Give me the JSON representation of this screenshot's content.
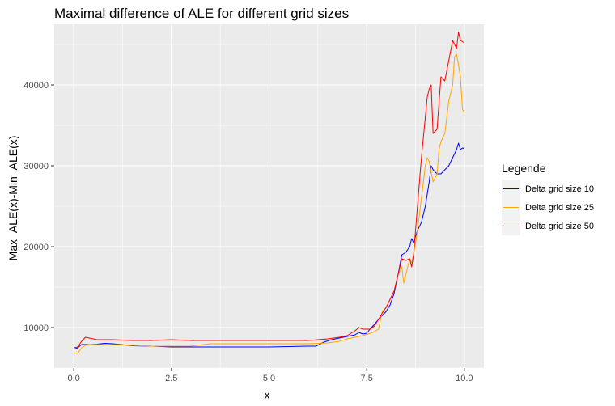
{
  "chart_data": {
    "type": "line",
    "title": "Maximal difference of ALE for different grid sizes",
    "xlabel": "x",
    "ylabel": "Max_ALE(x)-Min_ALE(x)",
    "xlim": [
      -0.5,
      10.5
    ],
    "ylim": [
      5000,
      47500
    ],
    "xticks": [
      0,
      2.5,
      5,
      7.5,
      10
    ],
    "xtick_labels": [
      "0.0",
      "2.5",
      "5.0",
      "7.5",
      "10.0"
    ],
    "yticks": [
      10000,
      20000,
      30000,
      40000
    ],
    "ytick_labels": [
      "10000",
      "20000",
      "30000",
      "40000"
    ],
    "grid": true,
    "background": "#ebebeb",
    "legend": {
      "title": "Legende",
      "position": "right"
    },
    "series": [
      {
        "name": "Delta grid size 10",
        "color": "#0000ff",
        "points": [
          [
            0,
            7300
          ],
          [
            0.1,
            7500
          ],
          [
            0.2,
            7900
          ],
          [
            0.4,
            7900
          ],
          [
            0.6,
            7950
          ],
          [
            0.8,
            8050
          ],
          [
            1,
            8000
          ],
          [
            1.5,
            7750
          ],
          [
            2,
            7700
          ],
          [
            2.5,
            7600
          ],
          [
            3,
            7600
          ],
          [
            3.5,
            7600
          ],
          [
            4,
            7600
          ],
          [
            4.5,
            7600
          ],
          [
            5,
            7600
          ],
          [
            5.5,
            7650
          ],
          [
            6,
            7700
          ],
          [
            6.2,
            7700
          ],
          [
            6.4,
            8200
          ],
          [
            6.6,
            8500
          ],
          [
            6.8,
            8700
          ],
          [
            7,
            8900
          ],
          [
            7.2,
            9100
          ],
          [
            7.3,
            9400
          ],
          [
            7.4,
            9200
          ],
          [
            7.5,
            9300
          ],
          [
            7.6,
            9900
          ],
          [
            7.7,
            10400
          ],
          [
            7.8,
            11000
          ],
          [
            7.9,
            11500
          ],
          [
            8,
            12000
          ],
          [
            8.1,
            12800
          ],
          [
            8.2,
            14200
          ],
          [
            8.3,
            16500
          ],
          [
            8.4,
            19000
          ],
          [
            8.5,
            19300
          ],
          [
            8.6,
            20000
          ],
          [
            8.65,
            21000
          ],
          [
            8.7,
            20500
          ],
          [
            8.8,
            22000
          ],
          [
            8.9,
            23000
          ],
          [
            9,
            25000
          ],
          [
            9.1,
            28000
          ],
          [
            9.15,
            30000
          ],
          [
            9.2,
            29500
          ],
          [
            9.3,
            29000
          ],
          [
            9.4,
            29000
          ],
          [
            9.5,
            29500
          ],
          [
            9.6,
            30000
          ],
          [
            9.7,
            31000
          ],
          [
            9.8,
            32000
          ],
          [
            9.85,
            32800
          ],
          [
            9.9,
            32000
          ],
          [
            9.95,
            32200
          ],
          [
            10,
            32100
          ]
        ]
      },
      {
        "name": "Delta grid size 25",
        "color": "#ffa500",
        "points": [
          [
            0,
            6900
          ],
          [
            0.1,
            6800
          ],
          [
            0.2,
            7500
          ],
          [
            0.3,
            7800
          ],
          [
            0.4,
            7900
          ],
          [
            0.6,
            7900
          ],
          [
            0.8,
            7900
          ],
          [
            1,
            7900
          ],
          [
            1.5,
            7800
          ],
          [
            2,
            7700
          ],
          [
            2.5,
            7700
          ],
          [
            3,
            7700
          ],
          [
            3.5,
            8000
          ],
          [
            4,
            8000
          ],
          [
            4.5,
            8000
          ],
          [
            5,
            8000
          ],
          [
            5.5,
            8000
          ],
          [
            6,
            8000
          ],
          [
            6.5,
            8100
          ],
          [
            6.8,
            8300
          ],
          [
            7,
            8600
          ],
          [
            7.2,
            8800
          ],
          [
            7.4,
            9000
          ],
          [
            7.6,
            9300
          ],
          [
            7.7,
            9500
          ],
          [
            7.8,
            9800
          ],
          [
            7.9,
            12000
          ],
          [
            8,
            12500
          ],
          [
            8.1,
            13500
          ],
          [
            8.2,
            14500
          ],
          [
            8.3,
            16500
          ],
          [
            8.4,
            17500
          ],
          [
            8.45,
            15500
          ],
          [
            8.5,
            16500
          ],
          [
            8.6,
            18500
          ],
          [
            8.65,
            18000
          ],
          [
            8.7,
            19000
          ],
          [
            8.8,
            22000
          ],
          [
            8.9,
            26000
          ],
          [
            9,
            30000
          ],
          [
            9.05,
            31000
          ],
          [
            9.1,
            30500
          ],
          [
            9.2,
            28000
          ],
          [
            9.3,
            29000
          ],
          [
            9.35,
            32000
          ],
          [
            9.4,
            33000
          ],
          [
            9.5,
            34000
          ],
          [
            9.6,
            38000
          ],
          [
            9.7,
            40000
          ],
          [
            9.75,
            43500
          ],
          [
            9.8,
            43800
          ],
          [
            9.85,
            42500
          ],
          [
            9.9,
            41000
          ],
          [
            9.95,
            37000
          ],
          [
            10,
            36500
          ]
        ]
      },
      {
        "name": "Delta grid size 50",
        "color": "#ff0000",
        "points": [
          [
            0,
            7500
          ],
          [
            0.1,
            7600
          ],
          [
            0.2,
            8300
          ],
          [
            0.3,
            8800
          ],
          [
            0.4,
            8700
          ],
          [
            0.5,
            8600
          ],
          [
            0.6,
            8500
          ],
          [
            1,
            8500
          ],
          [
            1.5,
            8400
          ],
          [
            2,
            8400
          ],
          [
            2.5,
            8500
          ],
          [
            3,
            8400
          ],
          [
            3.5,
            8400
          ],
          [
            4,
            8400
          ],
          [
            4.5,
            8400
          ],
          [
            5,
            8400
          ],
          [
            5.5,
            8400
          ],
          [
            6,
            8400
          ],
          [
            6.5,
            8600
          ],
          [
            6.8,
            8800
          ],
          [
            7,
            9000
          ],
          [
            7.2,
            9600
          ],
          [
            7.3,
            10000
          ],
          [
            7.4,
            9800
          ],
          [
            7.6,
            9800
          ],
          [
            7.7,
            10200
          ],
          [
            7.8,
            11000
          ],
          [
            7.9,
            11800
          ],
          [
            8,
            12500
          ],
          [
            8.1,
            13500
          ],
          [
            8.2,
            14500
          ],
          [
            8.3,
            16500
          ],
          [
            8.4,
            18500
          ],
          [
            8.5,
            18300
          ],
          [
            8.6,
            18500
          ],
          [
            8.65,
            17500
          ],
          [
            8.7,
            19000
          ],
          [
            8.8,
            25000
          ],
          [
            8.9,
            31000
          ],
          [
            9,
            36000
          ],
          [
            9.05,
            38500
          ],
          [
            9.1,
            39500
          ],
          [
            9.15,
            40000
          ],
          [
            9.2,
            34000
          ],
          [
            9.3,
            34500
          ],
          [
            9.4,
            41000
          ],
          [
            9.5,
            40500
          ],
          [
            9.6,
            43000
          ],
          [
            9.7,
            45500
          ],
          [
            9.8,
            44500
          ],
          [
            9.85,
            46500
          ],
          [
            9.9,
            45500
          ],
          [
            10,
            45200
          ]
        ]
      }
    ]
  }
}
